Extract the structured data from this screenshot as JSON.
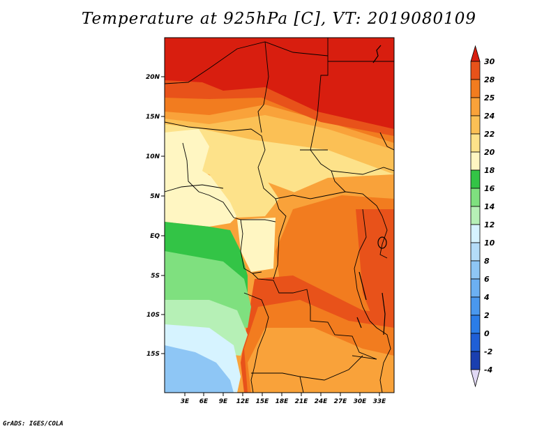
{
  "title": "Temperature at 925hPa [C], VT: 2019080109",
  "credit": "GrADS: IGES/COLA",
  "lat_labels": [
    "20N",
    "15N",
    "10N",
    "5N",
    "EQ",
    "5S",
    "10S",
    "15S"
  ],
  "lon_labels": [
    "3E",
    "6E",
    "9E",
    "12E",
    "15E",
    "18E",
    "21E",
    "24E",
    "27E",
    "30E",
    "33E"
  ],
  "colorbar": {
    "levels": [
      {
        "label": "-4",
        "color": "#0f1f7a"
      },
      {
        "label": "-2",
        "color": "#1a3fb0"
      },
      {
        "label": "0",
        "color": "#1f5fd6"
      },
      {
        "label": "2",
        "color": "#2b7de8"
      },
      {
        "label": "4",
        "color": "#4a98ee"
      },
      {
        "label": "6",
        "color": "#6cb0f2"
      },
      {
        "label": "8",
        "color": "#8ec6f5"
      },
      {
        "label": "10",
        "color": "#b4dcf8"
      },
      {
        "label": "12",
        "color": "#d6f3ff"
      },
      {
        "label": "14",
        "color": "#b6f0b6"
      },
      {
        "label": "16",
        "color": "#7fe07f"
      },
      {
        "label": "18",
        "color": "#33c446"
      },
      {
        "label": "20",
        "color": "#fff6c2"
      },
      {
        "label": "22",
        "color": "#fde28a"
      },
      {
        "label": "24",
        "color": "#fbc055"
      },
      {
        "label": "25",
        "color": "#f9a23a"
      },
      {
        "label": "28",
        "color": "#f27c1f"
      },
      {
        "label": "30",
        "color": "#e8521a"
      }
    ],
    "top_color": "#d81e0f",
    "bottom_color": "#e0d8f4"
  },
  "map_colors": {
    "deep_red": "#d81e0f",
    "red": "#e8521a",
    "dark_orange": "#f27c1f",
    "orange": "#f9a23a",
    "light_orange": "#fbc055",
    "yellow": "#fde28a",
    "pale_yellow": "#fff6c2",
    "green": "#33c446",
    "light_green": "#7fe07f",
    "pale_green": "#b6f0b6",
    "very_pale_blue": "#d6f3ff",
    "light_blue": "#8ec6f5"
  }
}
